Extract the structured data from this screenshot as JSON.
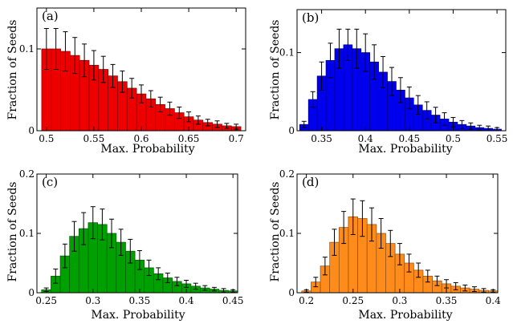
{
  "chart_data": [
    {
      "type": "bar",
      "panel_label": "(a)",
      "xlabel": "Max. Probability",
      "ylabel": "Fraction of Seeds",
      "bar_color": "#ee0000",
      "xlim": [
        0.49,
        0.71
      ],
      "ylim": [
        0,
        0.15
      ],
      "xticks": [
        0.5,
        0.55,
        0.6,
        0.65,
        0.7
      ],
      "xtick_labels": [
        "0.5",
        "0.55",
        "0.6",
        "0.65",
        "0.7"
      ],
      "yticks": [
        0,
        0.1
      ],
      "ytick_labels": [
        "0",
        "0.1"
      ],
      "bin_width": 0.01,
      "x": [
        0.5,
        0.51,
        0.52,
        0.53,
        0.54,
        0.55,
        0.56,
        0.57,
        0.58,
        0.59,
        0.6,
        0.61,
        0.62,
        0.63,
        0.64,
        0.65,
        0.66,
        0.67,
        0.68,
        0.69,
        0.7
      ],
      "values": [
        0.1,
        0.1,
        0.097,
        0.092,
        0.086,
        0.08,
        0.075,
        0.067,
        0.06,
        0.052,
        0.045,
        0.039,
        0.032,
        0.027,
        0.022,
        0.017,
        0.013,
        0.01,
        0.008,
        0.006,
        0.005
      ],
      "errors": [
        0.025,
        0.025,
        0.024,
        0.022,
        0.02,
        0.018,
        0.016,
        0.014,
        0.013,
        0.012,
        0.011,
        0.01,
        0.009,
        0.008,
        0.007,
        0.006,
        0.005,
        0.004,
        0.004,
        0.003,
        0.003
      ]
    },
    {
      "type": "bar",
      "panel_label": "(b)",
      "xlabel": "Max. Probability",
      "ylabel": "Fraction of Seeds",
      "bar_color": "#0000ee",
      "xlim": [
        0.322,
        0.56
      ],
      "ylim": [
        0,
        0.155
      ],
      "xticks": [
        0.35,
        0.4,
        0.45,
        0.5,
        0.55
      ],
      "xtick_labels": [
        "0.35",
        "0.4",
        "0.45",
        "0.5",
        "0.55"
      ],
      "yticks": [
        0,
        0.1
      ],
      "ytick_labels": [
        "0",
        "0.1"
      ],
      "bin_width": 0.01,
      "x": [
        0.33,
        0.34,
        0.35,
        0.36,
        0.37,
        0.38,
        0.39,
        0.4,
        0.41,
        0.42,
        0.43,
        0.44,
        0.45,
        0.46,
        0.47,
        0.48,
        0.49,
        0.5,
        0.51,
        0.52,
        0.53,
        0.54,
        0.55
      ],
      "values": [
        0.008,
        0.04,
        0.07,
        0.09,
        0.105,
        0.11,
        0.105,
        0.1,
        0.088,
        0.075,
        0.063,
        0.052,
        0.042,
        0.033,
        0.026,
        0.02,
        0.015,
        0.011,
        0.008,
        0.006,
        0.004,
        0.003,
        0.002
      ],
      "errors": [
        0.004,
        0.01,
        0.018,
        0.022,
        0.025,
        0.02,
        0.025,
        0.024,
        0.022,
        0.02,
        0.018,
        0.016,
        0.014,
        0.012,
        0.011,
        0.01,
        0.008,
        0.006,
        0.005,
        0.004,
        0.003,
        0.003,
        0.002
      ]
    },
    {
      "type": "bar",
      "panel_label": "(c)",
      "xlabel": "Max. Probability",
      "ylabel": "Fraction of Seeds",
      "bar_color": "#00a000",
      "xlim": [
        0.24,
        0.455
      ],
      "ylim": [
        0,
        0.2
      ],
      "xticks": [
        0.25,
        0.3,
        0.35,
        0.4,
        0.45
      ],
      "xtick_labels": [
        "0.25",
        "0.3",
        "0.35",
        "0.4",
        "0.45"
      ],
      "yticks": [
        0,
        0.1,
        0.2
      ],
      "ytick_labels": [
        "0",
        "0.1",
        "0.2"
      ],
      "bin_width": 0.01,
      "x": [
        0.25,
        0.26,
        0.27,
        0.28,
        0.29,
        0.3,
        0.31,
        0.32,
        0.33,
        0.34,
        0.35,
        0.36,
        0.37,
        0.38,
        0.39,
        0.4,
        0.41,
        0.42,
        0.43,
        0.44,
        0.45
      ],
      "values": [
        0.005,
        0.028,
        0.062,
        0.095,
        0.108,
        0.118,
        0.115,
        0.1,
        0.085,
        0.07,
        0.055,
        0.042,
        0.032,
        0.025,
        0.019,
        0.015,
        0.011,
        0.008,
        0.006,
        0.004,
        0.003
      ],
      "errors": [
        0.003,
        0.012,
        0.02,
        0.025,
        0.027,
        0.027,
        0.026,
        0.024,
        0.022,
        0.02,
        0.016,
        0.013,
        0.01,
        0.008,
        0.007,
        0.006,
        0.005,
        0.004,
        0.003,
        0.003,
        0.002
      ]
    },
    {
      "type": "bar",
      "panel_label": "(d)",
      "xlabel": "Max. Probability",
      "ylabel": "Fraction of Seeds",
      "bar_color": "#ff8c1a",
      "xlim": [
        0.19,
        0.405
      ],
      "ylim": [
        0,
        0.2
      ],
      "xticks": [
        0.2,
        0.25,
        0.3,
        0.35,
        0.4
      ],
      "xtick_labels": [
        "0.2",
        "0.25",
        "0.3",
        "0.35",
        "0.4"
      ],
      "yticks": [
        0,
        0.1,
        0.2
      ],
      "ytick_labels": [
        "0",
        "0.1",
        "0.2"
      ],
      "bin_width": 0.01,
      "x": [
        0.2,
        0.21,
        0.22,
        0.23,
        0.24,
        0.25,
        0.26,
        0.27,
        0.28,
        0.29,
        0.3,
        0.31,
        0.32,
        0.33,
        0.34,
        0.35,
        0.36,
        0.37,
        0.38,
        0.39,
        0.4
      ],
      "values": [
        0.003,
        0.018,
        0.045,
        0.085,
        0.11,
        0.128,
        0.125,
        0.115,
        0.1,
        0.083,
        0.065,
        0.05,
        0.038,
        0.028,
        0.02,
        0.015,
        0.011,
        0.008,
        0.006,
        0.004,
        0.003
      ],
      "errors": [
        0.002,
        0.008,
        0.015,
        0.022,
        0.027,
        0.03,
        0.03,
        0.028,
        0.025,
        0.022,
        0.018,
        0.015,
        0.012,
        0.01,
        0.008,
        0.007,
        0.006,
        0.005,
        0.004,
        0.003,
        0.002
      ]
    }
  ]
}
